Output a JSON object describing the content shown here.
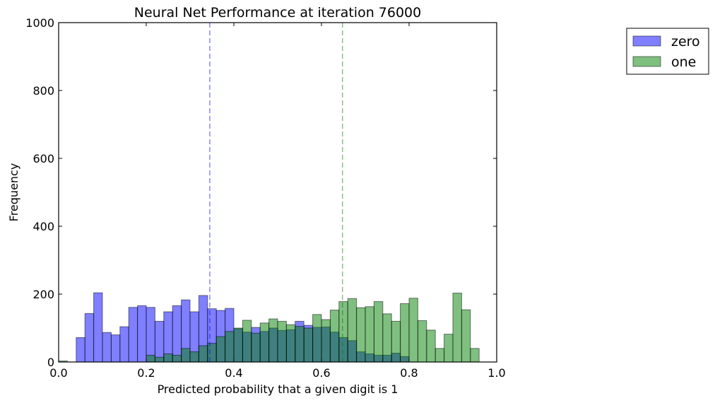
{
  "chart_data": {
    "type": "histogram",
    "title": "Neural Net Performance at iteration 76000",
    "xlabel": "Predicted probability that a given digit is 1",
    "ylabel": "Frequency",
    "xlim": [
      0.0,
      1.0
    ],
    "ylim": [
      0,
      1000
    ],
    "xticks": [
      "0.0",
      "0.2",
      "0.4",
      "0.6",
      "0.8",
      "1.0"
    ],
    "yticks": [
      "0",
      "200",
      "400",
      "600",
      "800",
      "1000"
    ],
    "bin_width": 0.02,
    "grid": false,
    "legend_position": "outside-top-right",
    "series": [
      {
        "name": "zero",
        "color": "#0000ff",
        "mean_line": 0.345,
        "bins": [
          [
            0.04,
            72
          ],
          [
            0.06,
            143
          ],
          [
            0.08,
            204
          ],
          [
            0.1,
            87
          ],
          [
            0.12,
            80
          ],
          [
            0.14,
            104
          ],
          [
            0.16,
            161
          ],
          [
            0.18,
            166
          ],
          [
            0.2,
            161
          ],
          [
            0.22,
            120
          ],
          [
            0.24,
            148
          ],
          [
            0.26,
            166
          ],
          [
            0.28,
            183
          ],
          [
            0.3,
            148
          ],
          [
            0.32,
            196
          ],
          [
            0.34,
            157
          ],
          [
            0.36,
            152
          ],
          [
            0.38,
            158
          ],
          [
            0.4,
            98
          ],
          [
            0.42,
            88
          ],
          [
            0.44,
            102
          ],
          [
            0.46,
            90
          ],
          [
            0.48,
            100
          ],
          [
            0.5,
            93
          ],
          [
            0.52,
            95
          ],
          [
            0.54,
            120
          ],
          [
            0.56,
            108
          ],
          [
            0.58,
            102
          ],
          [
            0.6,
            103
          ],
          [
            0.62,
            88
          ],
          [
            0.64,
            72
          ],
          [
            0.66,
            63
          ],
          [
            0.68,
            30
          ],
          [
            0.7,
            24
          ],
          [
            0.72,
            20
          ],
          [
            0.74,
            20
          ],
          [
            0.76,
            26
          ],
          [
            0.78,
            16
          ]
        ]
      },
      {
        "name": "one",
        "color": "#008000",
        "mean_line": 0.648,
        "bins": [
          [
            0.0,
            3
          ],
          [
            0.2,
            20
          ],
          [
            0.22,
            14
          ],
          [
            0.24,
            24
          ],
          [
            0.26,
            20
          ],
          [
            0.28,
            40
          ],
          [
            0.3,
            30
          ],
          [
            0.32,
            48
          ],
          [
            0.34,
            55
          ],
          [
            0.36,
            75
          ],
          [
            0.38,
            90
          ],
          [
            0.4,
            100
          ],
          [
            0.42,
            123
          ],
          [
            0.44,
            85
          ],
          [
            0.46,
            115
          ],
          [
            0.48,
            127
          ],
          [
            0.5,
            120
          ],
          [
            0.52,
            110
          ],
          [
            0.54,
            105
          ],
          [
            0.56,
            100
          ],
          [
            0.58,
            140
          ],
          [
            0.6,
            125
          ],
          [
            0.62,
            153
          ],
          [
            0.64,
            178
          ],
          [
            0.66,
            187
          ],
          [
            0.68,
            160
          ],
          [
            0.7,
            163
          ],
          [
            0.72,
            178
          ],
          [
            0.74,
            142
          ],
          [
            0.76,
            120
          ],
          [
            0.78,
            172
          ],
          [
            0.8,
            188
          ],
          [
            0.82,
            122
          ],
          [
            0.84,
            94
          ],
          [
            0.86,
            40
          ],
          [
            0.88,
            82
          ],
          [
            0.9,
            203
          ],
          [
            0.92,
            154
          ],
          [
            0.94,
            40
          ]
        ]
      }
    ]
  }
}
